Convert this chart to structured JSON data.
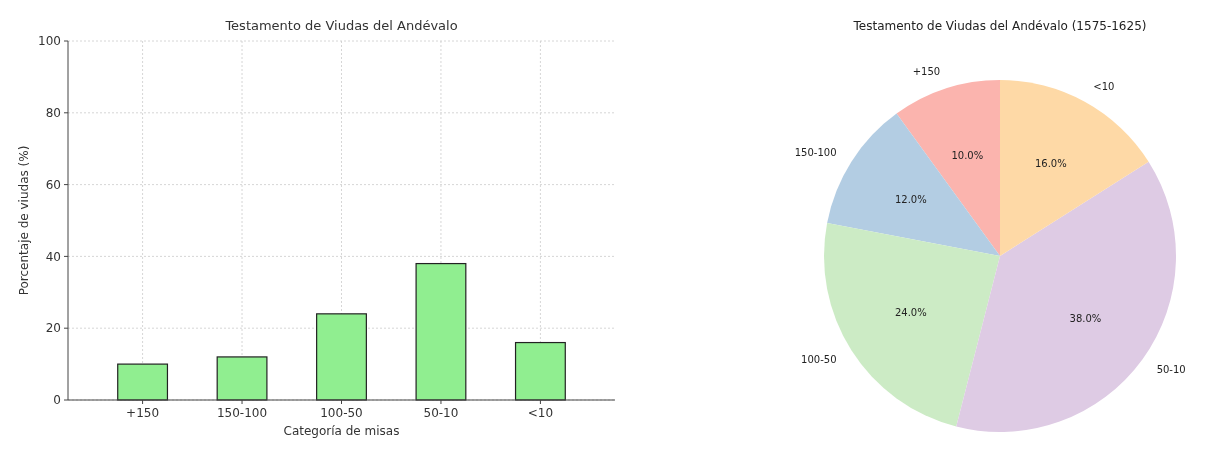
{
  "chart_data": [
    {
      "type": "bar",
      "title": "Testamento de Viudas del Andévalo",
      "xlabel": "Categoría de misas",
      "ylabel": "Porcentaje de viudas (%)",
      "categories": [
        "+150",
        "150-100",
        "100-50",
        "50-10",
        "<10"
      ],
      "values": [
        10,
        12,
        24,
        38,
        16
      ],
      "color": "#90ee90",
      "ylim": [
        0,
        100
      ],
      "yticks": [
        0,
        20,
        40,
        60,
        80,
        100
      ],
      "grid": true
    },
    {
      "type": "pie",
      "title": "Testamento de Viudas del Andévalo (1575-1625)",
      "categories": [
        "+150",
        "150-100",
        "100-50",
        "50-10",
        "<10"
      ],
      "values": [
        10,
        12,
        24,
        38,
        16
      ],
      "colors": [
        "#fbb4ae",
        "#b3cde3",
        "#ccebc5",
        "#decbe4",
        "#fed9a6"
      ],
      "value_labels": [
        "10.0%",
        "12.0%",
        "24.0%",
        "38.0%",
        "16.0%"
      ]
    }
  ]
}
